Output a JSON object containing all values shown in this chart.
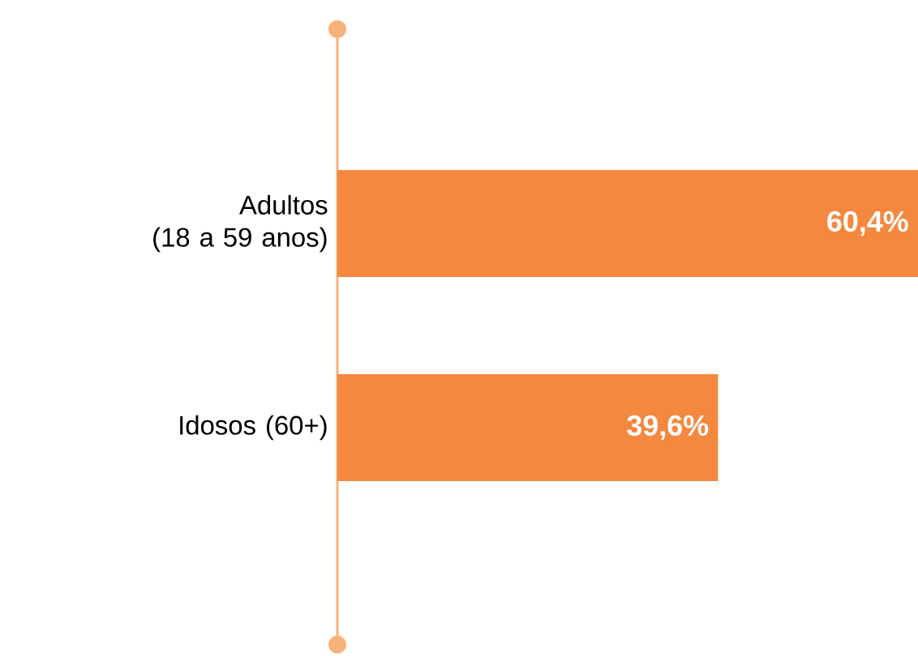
{
  "chart_data": {
    "type": "bar",
    "orientation": "horizontal",
    "categories": [
      "Adultos\n(18 a 59 anos)",
      "Idosos (60+)"
    ],
    "values": [
      60.4,
      39.6
    ],
    "value_labels": [
      "60,4%",
      "39,6%"
    ],
    "color": "#f4883f"
  }
}
